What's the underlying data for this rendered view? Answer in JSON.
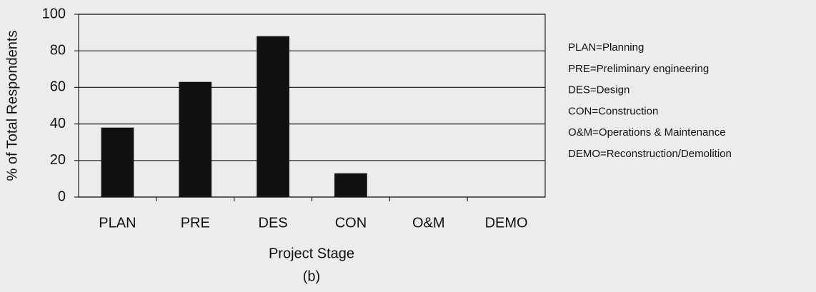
{
  "chart_data": {
    "type": "bar",
    "categories": [
      "PLAN",
      "PRE",
      "DES",
      "CON",
      "O&M",
      "DEMO"
    ],
    "values": [
      38,
      63,
      88,
      13,
      0,
      0
    ],
    "color": "#111111",
    "xlabel": "Project Stage",
    "ylabel": "% of Total Respondents",
    "caption": "(b)",
    "annotations": [
      "PLAN=Planning",
      "PRE=Preliminary engineering",
      "DES=Design",
      "CON=Construction",
      "O&M=Operations & Maintenance",
      "DEMO=Reconstruction/Demolition"
    ],
    "ylim": [
      0,
      100
    ],
    "yticks": [
      0,
      20,
      40,
      60,
      80,
      100
    ],
    "grid": true
  }
}
